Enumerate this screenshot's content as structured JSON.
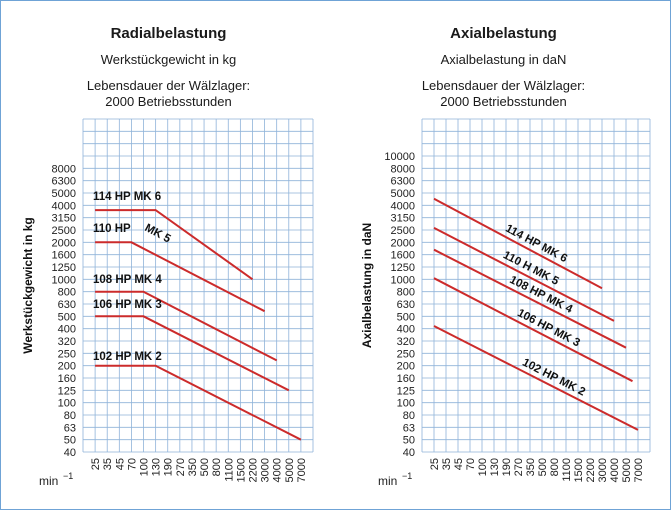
{
  "chart_data": [
    {
      "type": "line",
      "title": "Radialbelastung",
      "subtitle": "Werkstückgewicht in kg",
      "note_line1": "Lebensdauer der Wälzlager:",
      "note_line2": "2000 Betriebsstunden",
      "ylabel": "Werkstückgewicht in kg",
      "xunit": "min",
      "xunit_exp": "−1",
      "x_ticks": [
        "25",
        "35",
        "45",
        "70",
        "100",
        "130",
        "190",
        "270",
        "350",
        "500",
        "800",
        "1100",
        "1500",
        "2200",
        "3000",
        "4000",
        "5000",
        "7000"
      ],
      "y_ticks": [
        "40",
        "50",
        "63",
        "80",
        "100",
        "125",
        "160",
        "200",
        "250",
        "320",
        "400",
        "500",
        "630",
        "800",
        "1000",
        "1250",
        "1600",
        "2000",
        "2500",
        "3150",
        "4000",
        "5000",
        "6300",
        "8000"
      ],
      "y_extra_rows": 3,
      "series": [
        {
          "name": "114 HP MK 6",
          "points": [
            [
              25,
              3650
            ],
            [
              130,
              3650
            ],
            [
              2200,
              1000
            ]
          ]
        },
        {
          "name": "110 HP",
          "label2": "MK 5",
          "points": [
            [
              25,
              2000
            ],
            [
              70,
              2000
            ],
            [
              3000,
              550
            ]
          ]
        },
        {
          "name": "108 HP MK 4",
          "points": [
            [
              25,
              800
            ],
            [
              100,
              800
            ],
            [
              4000,
              220
            ]
          ]
        },
        {
          "name": "106 HP MK 3",
          "points": [
            [
              25,
              500
            ],
            [
              100,
              500
            ],
            [
              5000,
              125
            ]
          ]
        },
        {
          "name": "102 HP MK 2",
          "points": [
            [
              25,
              200
            ],
            [
              130,
              200
            ],
            [
              7000,
              50
            ]
          ]
        }
      ],
      "line_color": "#cc2b2b"
    },
    {
      "type": "line",
      "title": "Axialbelastung",
      "subtitle": "Axialbelastung in daN",
      "note_line1": "Lebensdauer der Wälzlager:",
      "note_line2": "2000 Betriebsstunden",
      "ylabel": "Axialbelastung in daN",
      "xunit": "min",
      "xunit_exp": "−1",
      "x_ticks": [
        "25",
        "35",
        "45",
        "70",
        "100",
        "130",
        "190",
        "270",
        "350",
        "500",
        "800",
        "1100",
        "1500",
        "2200",
        "3000",
        "4000",
        "5000",
        "7000"
      ],
      "y_ticks": [
        "40",
        "50",
        "63",
        "80",
        "100",
        "125",
        "160",
        "200",
        "250",
        "320",
        "400",
        "500",
        "630",
        "800",
        "1000",
        "1250",
        "1600",
        "2000",
        "2500",
        "3150",
        "4000",
        "5000",
        "6300",
        "8000",
        "10000"
      ],
      "y_extra_rows": 2,
      "series": [
        {
          "name": "114 HP MK 6",
          "points": [
            [
              25,
              4500
            ],
            [
              3000,
              850
            ]
          ]
        },
        {
          "name": "110 H MK 5",
          "points": [
            [
              25,
              2600
            ],
            [
              4000,
              460
            ]
          ]
        },
        {
          "name": "108 HP MK 4",
          "points": [
            [
              25,
              1750
            ],
            [
              5000,
              280
            ]
          ]
        },
        {
          "name": "106 HP MK 3",
          "points": [
            [
              25,
              1020
            ],
            [
              6000,
              150
            ]
          ]
        },
        {
          "name": "102 HP MK 2",
          "points": [
            [
              25,
              420
            ],
            [
              7000,
              60
            ]
          ]
        }
      ],
      "line_color": "#cc2b2b"
    }
  ]
}
